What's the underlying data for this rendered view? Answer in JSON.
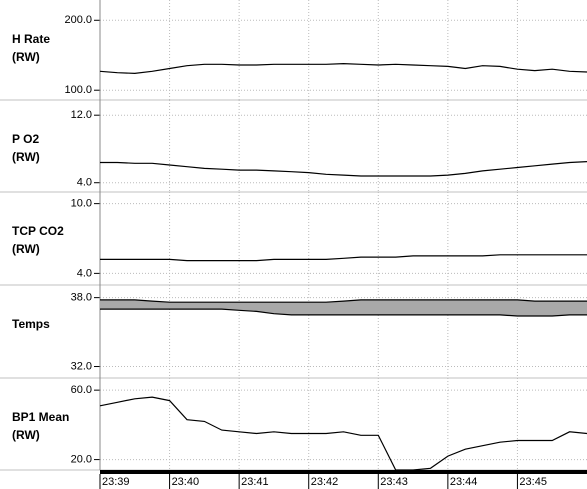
{
  "chart_data": [
    {
      "type": "line",
      "label": [
        "H Rate",
        "(RW)"
      ],
      "color": "#000000",
      "ylim": [
        86,
        229
      ],
      "yticks": [
        {
          "value": 200,
          "label": "200.0"
        },
        {
          "value": 100,
          "label": "100.0"
        }
      ],
      "values": [
        127,
        125,
        124,
        127,
        131,
        135,
        137,
        137,
        136,
        136,
        137,
        137,
        137,
        137,
        138,
        137,
        136,
        137,
        136,
        135,
        134,
        131,
        135,
        134,
        130,
        128,
        130,
        127,
        126
      ]
    },
    {
      "type": "line",
      "label": [
        "P O2",
        "(RW)"
      ],
      "color": "#000000",
      "ylim": [
        2.9,
        13.8
      ],
      "yticks": [
        {
          "value": 12,
          "label": "12.0"
        },
        {
          "value": 4,
          "label": "4.0"
        }
      ],
      "values": [
        6.4,
        6.4,
        6.3,
        6.3,
        6.1,
        5.9,
        5.7,
        5.6,
        5.5,
        5.5,
        5.4,
        5.3,
        5.2,
        5.0,
        4.9,
        4.8,
        4.8,
        4.8,
        4.8,
        4.8,
        4.9,
        5.1,
        5.4,
        5.6,
        5.8,
        6.0,
        6.2,
        6.4,
        6.5
      ]
    },
    {
      "type": "line",
      "label": [
        "TCP CO2",
        "(RW)"
      ],
      "color": "#000000",
      "ylim": [
        3,
        11
      ],
      "yticks": [
        {
          "value": 10,
          "label": "10.0"
        },
        {
          "value": 4,
          "label": "4.0"
        }
      ],
      "values": [
        5.2,
        5.2,
        5.2,
        5.2,
        5.2,
        5.1,
        5.1,
        5.1,
        5.1,
        5.1,
        5.2,
        5.2,
        5.2,
        5.2,
        5.3,
        5.4,
        5.4,
        5.4,
        5.5,
        5.5,
        5.5,
        5.5,
        5.5,
        5.6,
        5.6,
        5.6,
        5.6,
        5.6,
        5.6
      ]
    },
    {
      "type": "band",
      "label": [
        "Temps"
      ],
      "color": "#000000",
      "fill": "#a9a9a9",
      "ylim": [
        31,
        39.1
      ],
      "yticks": [
        {
          "value": 38,
          "label": "38.0"
        },
        {
          "value": 32,
          "label": "32.0"
        }
      ],
      "series": [
        {
          "values": [
            37.8,
            37.8,
            37.8,
            37.7,
            37.6,
            37.6,
            37.6,
            37.6,
            37.6,
            37.6,
            37.6,
            37.6,
            37.6,
            37.6,
            37.7,
            37.8,
            37.8,
            37.8,
            37.8,
            37.8,
            37.8,
            37.8,
            37.8,
            37.8,
            37.8,
            37.7,
            37.7,
            37.7,
            37.7
          ]
        },
        {
          "values": [
            37.0,
            37.0,
            37.0,
            37.0,
            37.0,
            37.0,
            37.0,
            37.0,
            36.9,
            36.8,
            36.6,
            36.5,
            36.5,
            36.5,
            36.5,
            36.5,
            36.5,
            36.5,
            36.5,
            36.5,
            36.5,
            36.5,
            36.5,
            36.5,
            36.4,
            36.4,
            36.4,
            36.5,
            36.5
          ]
        }
      ]
    },
    {
      "type": "line",
      "label": [
        "BP1 Mean",
        "(RW)"
      ],
      "color": "#000000",
      "ylim": [
        14,
        67
      ],
      "yticks": [
        {
          "value": 60,
          "label": "60.0"
        },
        {
          "value": 20,
          "label": "20.0"
        }
      ],
      "values": [
        51,
        53,
        55,
        56,
        54,
        43,
        42,
        37,
        36,
        35,
        36,
        35,
        35,
        35,
        36,
        34,
        34,
        14,
        14,
        15,
        22,
        26,
        28,
        30,
        31,
        31,
        31,
        36,
        35
      ],
      "x": [
        1419,
        1419.25,
        1419.5,
        1419.75,
        1420,
        1420.25,
        1420.5,
        1420.75,
        1421,
        1421.25,
        1421.5,
        1421.75,
        1422,
        1422.25,
        1422.5,
        1422.75,
        1423,
        1423.25,
        1423.5,
        1423.75,
        1424,
        1424.25,
        1424.5,
        1424.75,
        1425,
        1425.25,
        1425.5,
        1425.75,
        1426
      ],
      "xlim": [
        1419,
        1426
      ],
      "xticks": [
        {
          "value": 1419,
          "label": "23:39"
        },
        {
          "value": 1420,
          "label": "23:40"
        },
        {
          "value": 1421,
          "label": "23:41"
        },
        {
          "value": 1422,
          "label": "23:42"
        },
        {
          "value": 1423,
          "label": "23:43"
        },
        {
          "value": 1424,
          "label": "23:44"
        },
        {
          "value": 1425,
          "label": "23:45"
        }
      ]
    }
  ]
}
